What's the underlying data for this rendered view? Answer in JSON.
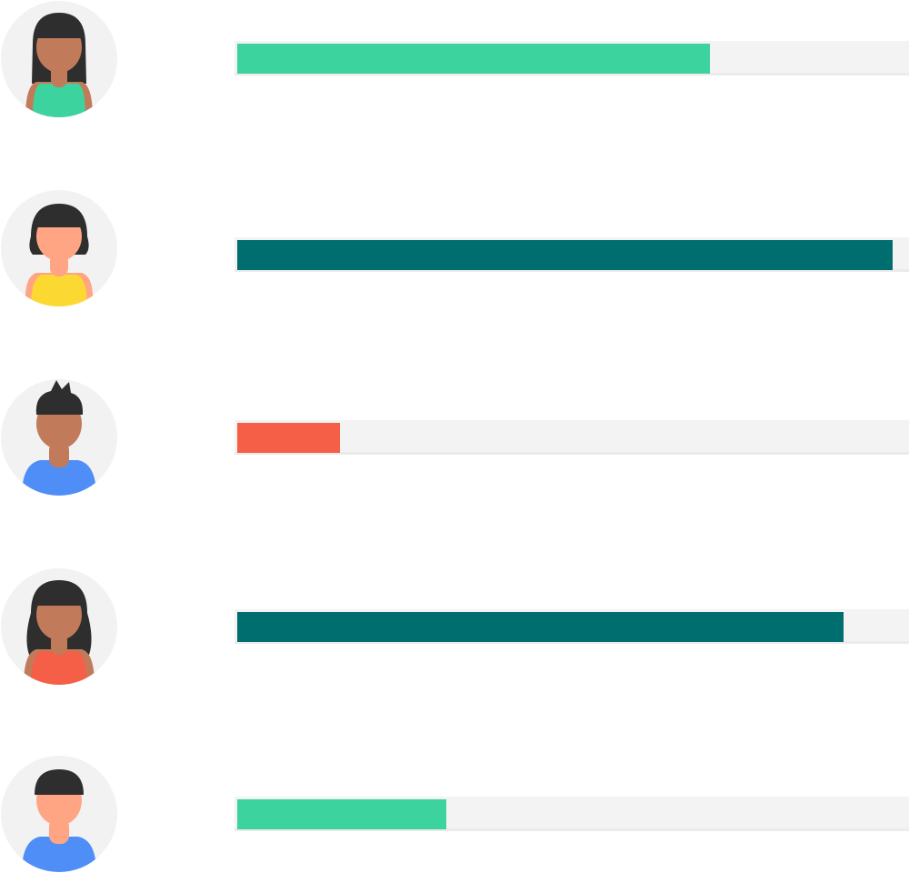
{
  "rows": [
    {
      "avatar_icon": "woman-long-hair-green-top-icon",
      "progress": 0.704,
      "bar_color": "#3dd39f",
      "skin_color": "#c17b5a",
      "shirt_color": "#3dd39f",
      "hair_color": "#2e2e2e"
    },
    {
      "avatar_icon": "woman-bob-hair-yellow-top-icon",
      "progress": 0.976,
      "bar_color": "#006e6e",
      "skin_color": "#ffa584",
      "shirt_color": "#fcd932",
      "hair_color": "#2e2e2e"
    },
    {
      "avatar_icon": "man-spiky-hair-blue-shirt-icon",
      "progress": 0.153,
      "bar_color": "#f55f47",
      "skin_color": "#c17b5a",
      "shirt_color": "#4f8ef7",
      "hair_color": "#2e2e2e"
    },
    {
      "avatar_icon": "woman-long-hair-red-top-icon",
      "progress": 0.903,
      "bar_color": "#006e6e",
      "skin_color": "#c17b5a",
      "shirt_color": "#f55f47",
      "hair_color": "#2e2e2e"
    },
    {
      "avatar_icon": "man-short-hair-blue-shirt-icon",
      "progress": 0.311,
      "bar_color": "#3dd39f",
      "skin_color": "#ffa584",
      "shirt_color": "#4f8ef7",
      "hair_color": "#2e2e2e"
    }
  ],
  "colors": {
    "avatar_background": "#f2f2f2",
    "track": "#f3f3f3"
  }
}
